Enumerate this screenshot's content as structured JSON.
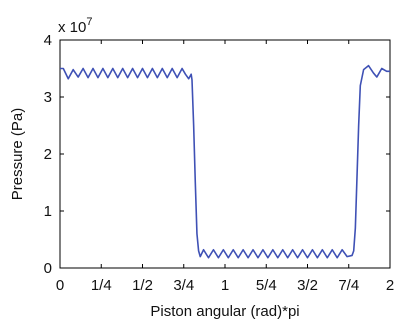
{
  "chart_data": {
    "type": "line",
    "title": "",
    "xlabel": "Piston angular (rad)*pi",
    "ylabel": "Pressure (Pa)",
    "xlim": [
      0,
      2
    ],
    "ylim": [
      0,
      4
    ],
    "grid": false,
    "y_multiplier_label": "x 10",
    "y_multiplier_exponent": "7",
    "x_ticks": [
      {
        "value": 0,
        "label": "0"
      },
      {
        "value": 0.25,
        "label": "1/4"
      },
      {
        "value": 0.5,
        "label": "1/2"
      },
      {
        "value": 0.75,
        "label": "3/4"
      },
      {
        "value": 1,
        "label": "1"
      },
      {
        "value": 1.25,
        "label": "5/4"
      },
      {
        "value": 1.5,
        "label": "3/2"
      },
      {
        "value": 1.75,
        "label": "7/4"
      },
      {
        "value": 2,
        "label": "2"
      }
    ],
    "y_ticks": [
      {
        "value": 0,
        "label": "0"
      },
      {
        "value": 1,
        "label": "1"
      },
      {
        "value": 2,
        "label": "2"
      },
      {
        "value": 3,
        "label": "3"
      },
      {
        "value": 4,
        "label": "4"
      }
    ],
    "series": [
      {
        "color": "#3f51b5",
        "points": [
          [
            0,
            3.5
          ],
          [
            0.02,
            3.5
          ],
          [
            0.05,
            3.32
          ],
          [
            0.08,
            3.48
          ],
          [
            0.11,
            3.35
          ],
          [
            0.14,
            3.5
          ],
          [
            0.17,
            3.34
          ],
          [
            0.2,
            3.5
          ],
          [
            0.23,
            3.34
          ],
          [
            0.26,
            3.5
          ],
          [
            0.29,
            3.34
          ],
          [
            0.32,
            3.5
          ],
          [
            0.35,
            3.34
          ],
          [
            0.38,
            3.5
          ],
          [
            0.41,
            3.34
          ],
          [
            0.44,
            3.5
          ],
          [
            0.47,
            3.34
          ],
          [
            0.5,
            3.5
          ],
          [
            0.53,
            3.34
          ],
          [
            0.56,
            3.5
          ],
          [
            0.59,
            3.34
          ],
          [
            0.62,
            3.5
          ],
          [
            0.65,
            3.34
          ],
          [
            0.68,
            3.5
          ],
          [
            0.71,
            3.34
          ],
          [
            0.74,
            3.5
          ],
          [
            0.76,
            3.4
          ],
          [
            0.78,
            3.32
          ],
          [
            0.795,
            3.4
          ],
          [
            0.8,
            3.3
          ],
          [
            0.81,
            2.5
          ],
          [
            0.82,
            1.5
          ],
          [
            0.83,
            0.6
          ],
          [
            0.84,
            0.3
          ],
          [
            0.85,
            0.2
          ],
          [
            0.87,
            0.32
          ],
          [
            0.9,
            0.18
          ],
          [
            0.93,
            0.32
          ],
          [
            0.96,
            0.18
          ],
          [
            0.99,
            0.32
          ],
          [
            1.02,
            0.18
          ],
          [
            1.05,
            0.32
          ],
          [
            1.08,
            0.18
          ],
          [
            1.11,
            0.32
          ],
          [
            1.14,
            0.18
          ],
          [
            1.17,
            0.32
          ],
          [
            1.2,
            0.18
          ],
          [
            1.23,
            0.32
          ],
          [
            1.26,
            0.18
          ],
          [
            1.29,
            0.32
          ],
          [
            1.32,
            0.18
          ],
          [
            1.35,
            0.32
          ],
          [
            1.38,
            0.18
          ],
          [
            1.41,
            0.32
          ],
          [
            1.44,
            0.18
          ],
          [
            1.47,
            0.32
          ],
          [
            1.5,
            0.18
          ],
          [
            1.53,
            0.32
          ],
          [
            1.56,
            0.18
          ],
          [
            1.59,
            0.32
          ],
          [
            1.62,
            0.18
          ],
          [
            1.65,
            0.32
          ],
          [
            1.68,
            0.18
          ],
          [
            1.71,
            0.32
          ],
          [
            1.74,
            0.2
          ],
          [
            1.77,
            0.22
          ],
          [
            1.78,
            0.3
          ],
          [
            1.79,
            0.7
          ],
          [
            1.8,
            1.6
          ],
          [
            1.81,
            2.5
          ],
          [
            1.82,
            3.2
          ],
          [
            1.84,
            3.48
          ],
          [
            1.87,
            3.55
          ],
          [
            1.9,
            3.42
          ],
          [
            1.92,
            3.35
          ],
          [
            1.95,
            3.5
          ],
          [
            1.98,
            3.45
          ],
          [
            2.0,
            3.45
          ]
        ]
      }
    ]
  }
}
